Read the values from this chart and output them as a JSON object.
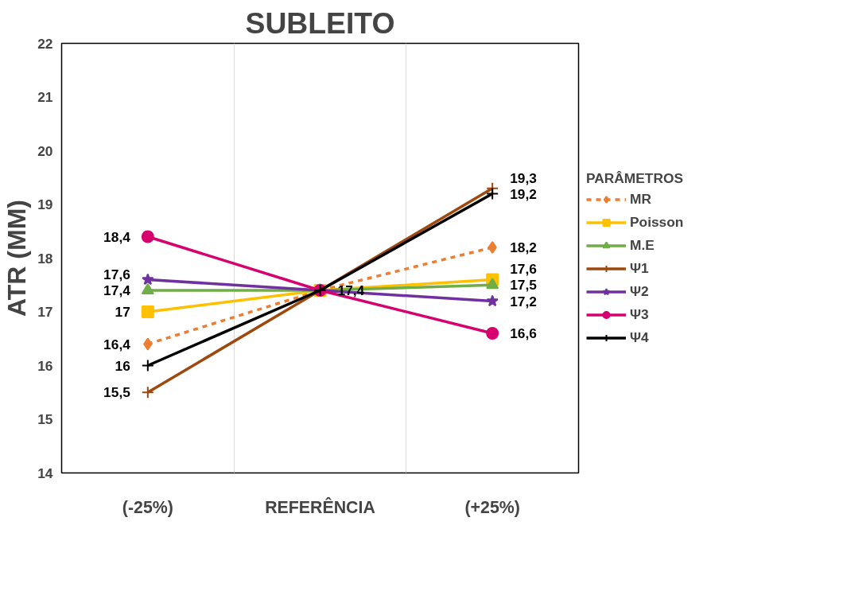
{
  "chart_data": {
    "type": "line",
    "title": "SUBLEITO",
    "ylabel": "ATR (MM)",
    "legend_title": "PARÂMETROS",
    "categories": [
      "(-25%)",
      "REFERÊNCIA",
      "(+25%)"
    ],
    "ylim": [
      14,
      22
    ],
    "yticks": [
      14,
      15,
      16,
      17,
      18,
      19,
      20,
      21,
      22
    ],
    "grid": "x",
    "legend": "right",
    "series": [
      {
        "name": "MR",
        "color": "#ed7d31",
        "marker": "diamond",
        "line_style": "dashed",
        "values": [
          16.4,
          17.4,
          18.2
        ],
        "value_labels": [
          "16,4",
          null,
          "18,2"
        ]
      },
      {
        "name": "Poisson",
        "color": "#ffc000",
        "marker": "square",
        "line_style": "solid",
        "values": [
          17,
          17.4,
          17.6
        ],
        "value_labels": [
          "17",
          null,
          "17,6"
        ]
      },
      {
        "name": "M.E",
        "color": "#70ad47",
        "marker": "triangle",
        "line_style": "solid",
        "values": [
          17.4,
          17.4,
          17.5
        ],
        "value_labels": [
          "17,4",
          null,
          "17,5"
        ]
      },
      {
        "name": "Ψ1",
        "color": "#9e480e",
        "marker": "cross",
        "line_style": "solid",
        "values": [
          15.5,
          17.4,
          19.3
        ],
        "value_labels": [
          "15,5",
          null,
          "19,3"
        ]
      },
      {
        "name": "Ψ2",
        "color": "#7030a0",
        "marker": "star",
        "line_style": "solid",
        "values": [
          17.6,
          17.4,
          17.2
        ],
        "value_labels": [
          "17,6",
          null,
          "17,2"
        ]
      },
      {
        "name": "Ψ3",
        "color": "#d6006e",
        "marker": "circle",
        "line_style": "solid",
        "values": [
          18.4,
          17.4,
          16.6
        ],
        "value_labels": [
          "18,4",
          null,
          "16,6"
        ]
      },
      {
        "name": "Ψ4",
        "color": "#000000",
        "marker": "cross",
        "line_style": "solid",
        "values": [
          16,
          17.4,
          19.2
        ],
        "value_labels": [
          "16",
          "17,4",
          "19,2"
        ]
      }
    ]
  }
}
